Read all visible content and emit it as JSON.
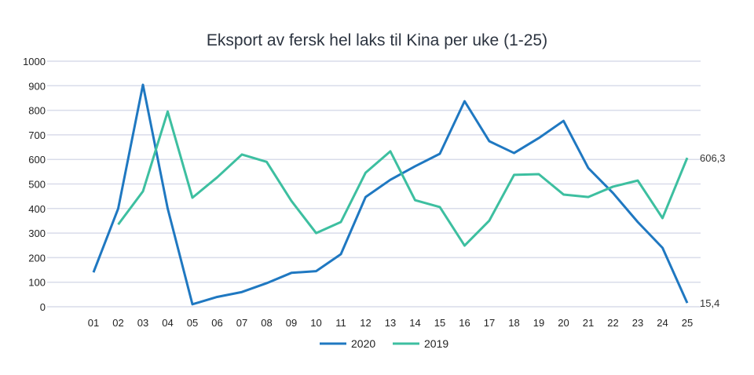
{
  "chart_data": {
    "type": "line",
    "title": "Eksport av fersk hel laks til Kina per uke (1-25)",
    "xlabel": "",
    "ylabel": "",
    "ylim": [
      0,
      1000
    ],
    "yticks": [
      "0",
      "100",
      "200",
      "300",
      "400",
      "500",
      "600",
      "700",
      "800",
      "900",
      "1000"
    ],
    "grid": true,
    "legend_placement": "bottom",
    "categories": [
      "01",
      "02",
      "03",
      "04",
      "05",
      "06",
      "07",
      "08",
      "09",
      "10",
      "11",
      "12",
      "13",
      "14",
      "15",
      "16",
      "17",
      "18",
      "19",
      "20",
      "21",
      "22",
      "23",
      "24",
      "25"
    ],
    "series": [
      {
        "name": "2020",
        "color": "#1f78c1",
        "values": [
          140,
          400,
          904,
          400,
          10,
          40,
          60,
          96,
          138,
          145,
          214,
          447,
          517,
          572,
          623,
          837,
          674,
          626,
          687,
          757,
          565,
          463,
          345,
          240,
          15.4
        ]
      },
      {
        "name": "2019",
        "color": "#3dbfa0",
        "values": [
          null,
          335,
          470,
          795,
          444,
          527,
          620,
          590,
          431,
          300,
          345,
          546,
          633,
          434,
          406,
          249,
          351,
          537,
          540,
          457,
          447,
          489,
          514,
          361,
          606.3
        ]
      }
    ],
    "data_labels": [
      {
        "series": "2019",
        "category": "25",
        "text": "606,3"
      },
      {
        "series": "2020",
        "category": "25",
        "text": "15,4"
      }
    ]
  }
}
